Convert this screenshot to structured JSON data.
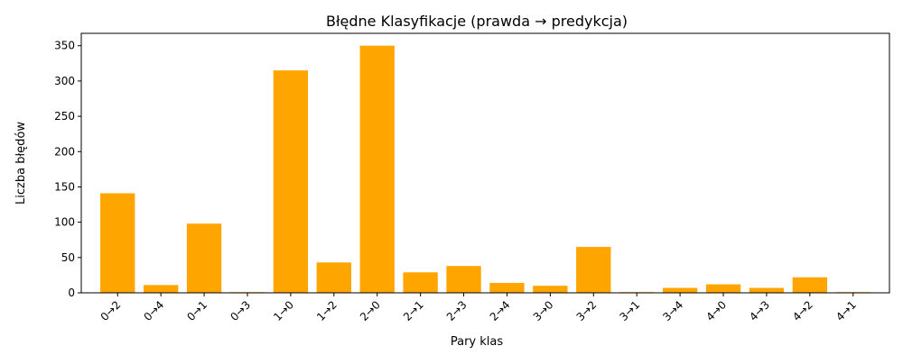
{
  "chart_data": {
    "type": "bar",
    "title": "Błędne Klasyfikacje (prawda → predykcja)",
    "xlabel": "Pary klas",
    "ylabel": "Liczba błędów",
    "categories": [
      "0→2",
      "0→4",
      "0→1",
      "0→3",
      "1→0",
      "1→2",
      "2→0",
      "2→1",
      "2→3",
      "2→4",
      "3→0",
      "3→2",
      "3→1",
      "3→4",
      "4→0",
      "4→3",
      "4→2",
      "4→1"
    ],
    "values": [
      141,
      11,
      98,
      1,
      315,
      43,
      350,
      29,
      38,
      14,
      10,
      65,
      1,
      7,
      12,
      7,
      22,
      1
    ],
    "ylim": [
      0,
      367.5
    ],
    "yticks": [
      0,
      50,
      100,
      150,
      200,
      250,
      300,
      350
    ],
    "bar_color": "#FFA500",
    "grid": false,
    "legend": "none"
  }
}
